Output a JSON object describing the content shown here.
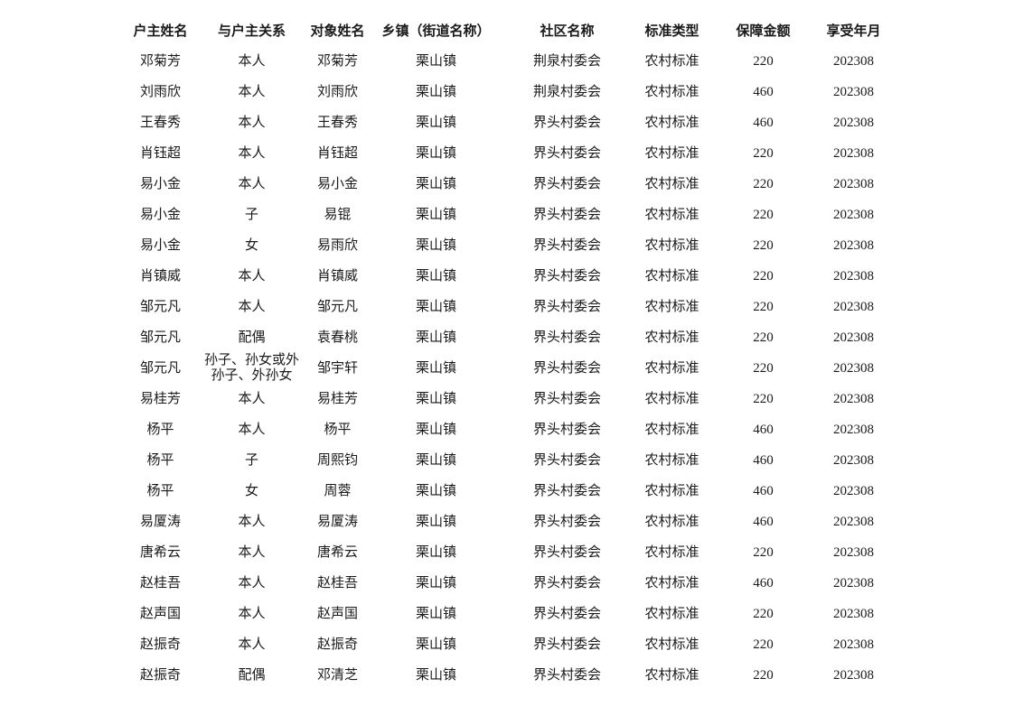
{
  "page": {
    "background": "#ffffff",
    "text_color": "#1a1a1a"
  },
  "table": {
    "columns": [
      "户主姓名",
      "与户主关系",
      "对象姓名",
      "乡镇（街道名称）",
      "社区名称",
      "标准类型",
      "保障金额",
      "享受年月"
    ],
    "rows": [
      [
        "邓菊芳",
        "本人",
        "邓菊芳",
        "栗山镇",
        "荆泉村委会",
        "农村标准",
        "220",
        "202308"
      ],
      [
        "刘雨欣",
        "本人",
        "刘雨欣",
        "栗山镇",
        "荆泉村委会",
        "农村标准",
        "460",
        "202308"
      ],
      [
        "王春秀",
        "本人",
        "王春秀",
        "栗山镇",
        "界头村委会",
        "农村标准",
        "460",
        "202308"
      ],
      [
        "肖钰超",
        "本人",
        "肖钰超",
        "栗山镇",
        "界头村委会",
        "农村标准",
        "220",
        "202308"
      ],
      [
        "易小金",
        "本人",
        "易小金",
        "栗山镇",
        "界头村委会",
        "农村标准",
        "220",
        "202308"
      ],
      [
        "易小金",
        "子",
        "易锟",
        "栗山镇",
        "界头村委会",
        "农村标准",
        "220",
        "202308"
      ],
      [
        "易小金",
        "女",
        "易雨欣",
        "栗山镇",
        "界头村委会",
        "农村标准",
        "220",
        "202308"
      ],
      [
        "肖镇威",
        "本人",
        "肖镇威",
        "栗山镇",
        "界头村委会",
        "农村标准",
        "220",
        "202308"
      ],
      [
        "邹元凡",
        "本人",
        "邹元凡",
        "栗山镇",
        "界头村委会",
        "农村标准",
        "220",
        "202308"
      ],
      [
        "邹元凡",
        "配偶",
        "袁春桃",
        "栗山镇",
        "界头村委会",
        "农村标准",
        "220",
        "202308"
      ],
      [
        "邹元凡",
        "孙子、孙女或外孙子、外孙女",
        "邹宇轩",
        "栗山镇",
        "界头村委会",
        "农村标准",
        "220",
        "202308"
      ],
      [
        "易桂芳",
        "本人",
        "易桂芳",
        "栗山镇",
        "界头村委会",
        "农村标准",
        "220",
        "202308"
      ],
      [
        "杨平",
        "本人",
        "杨平",
        "栗山镇",
        "界头村委会",
        "农村标准",
        "460",
        "202308"
      ],
      [
        "杨平",
        "子",
        "周熙钧",
        "栗山镇",
        "界头村委会",
        "农村标准",
        "460",
        "202308"
      ],
      [
        "杨平",
        "女",
        "周蓉",
        "栗山镇",
        "界头村委会",
        "农村标准",
        "460",
        "202308"
      ],
      [
        "易厦涛",
        "本人",
        "易厦涛",
        "栗山镇",
        "界头村委会",
        "农村标准",
        "460",
        "202308"
      ],
      [
        "唐希云",
        "本人",
        "唐希云",
        "栗山镇",
        "界头村委会",
        "农村标准",
        "220",
        "202308"
      ],
      [
        "赵桂吾",
        "本人",
        "赵桂吾",
        "栗山镇",
        "界头村委会",
        "农村标准",
        "460",
        "202308"
      ],
      [
        "赵声国",
        "本人",
        "赵声国",
        "栗山镇",
        "界头村委会",
        "农村标准",
        "220",
        "202308"
      ],
      [
        "赵振奇",
        "本人",
        "赵振奇",
        "栗山镇",
        "界头村委会",
        "农村标准",
        "220",
        "202308"
      ],
      [
        "赵振奇",
        "配偶",
        "邓清芝",
        "栗山镇",
        "界头村委会",
        "农村标准",
        "220",
        "202308"
      ]
    ]
  }
}
